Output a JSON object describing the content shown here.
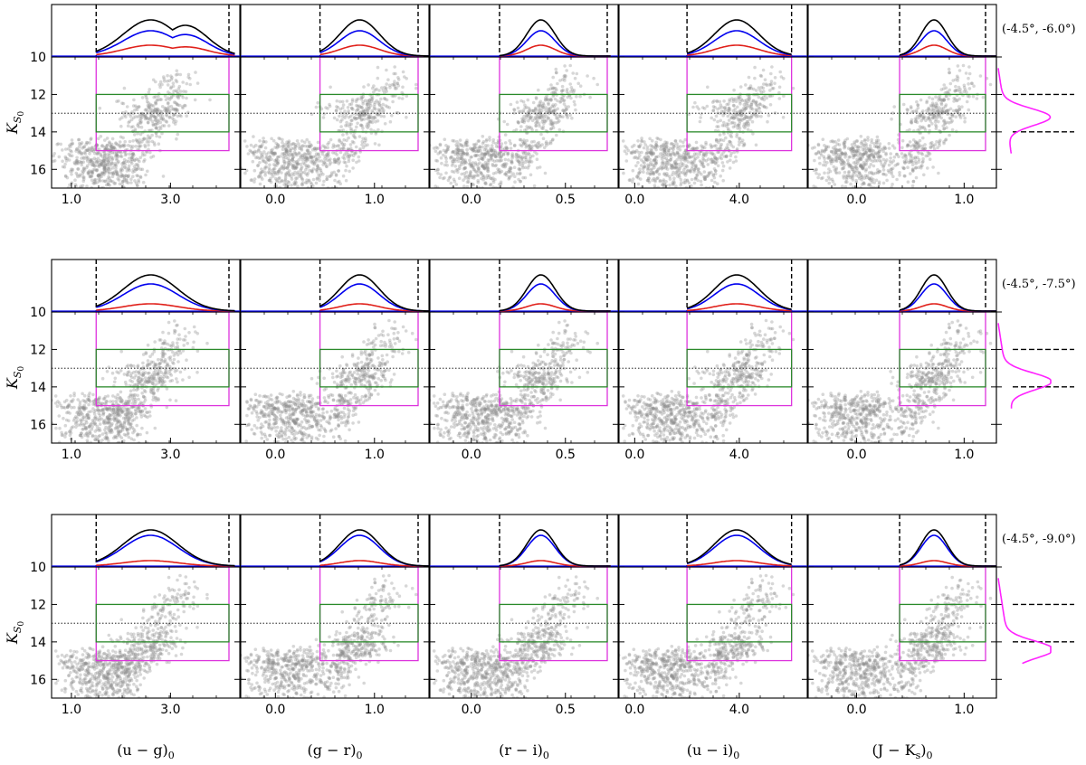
{
  "chart_data": {
    "type": "scatter",
    "description_rows": 3,
    "ylabel": "K_S0",
    "ylabel_main": "K",
    "ylabel_sub": "S",
    "ylabel_sub2": "0",
    "y_range": [
      17,
      10
    ],
    "y_ticks": [
      "10",
      "12",
      "14",
      "16"
    ],
    "y_tick_values": [
      10,
      12,
      14,
      16
    ],
    "reference_lines": {
      "dotted_y": 13.0,
      "green_box_y": [
        12.0,
        14.0
      ],
      "magenta_box_y": [
        10.0,
        15.0
      ],
      "side_dashed_y": [
        12.0,
        14.0
      ]
    },
    "columns": [
      {
        "xlabel": "(u − g)₀",
        "xlabel_main": "(u − g)",
        "xlabel_sub": "0",
        "xlim": [
          0.6,
          4.4
        ],
        "ticks": [
          {
            "v": 1.0,
            "label": "1.0"
          },
          {
            "v": 3.0,
            "label": "3.0"
          }
        ],
        "dash_x": [
          1.5,
          4.3
        ],
        "green_box_x": [
          1.5,
          4.3
        ],
        "kde_center": 2.6,
        "kde_width": 0.55
      },
      {
        "xlabel": "(g − r)₀",
        "xlabel_main": "(g − r)",
        "xlabel_sub": "0",
        "xlim": [
          -0.35,
          1.55
        ],
        "ticks": [
          {
            "v": 0.0,
            "label": "0.0"
          },
          {
            "v": 1.0,
            "label": "1.0"
          }
        ],
        "dash_x": [
          0.45,
          1.55
        ],
        "green_box_x": [
          0.45,
          1.55
        ],
        "kde_center": 0.85,
        "kde_width": 0.2
      },
      {
        "xlabel": "(r − i)₀",
        "xlabel_main": "(r − i)",
        "xlabel_sub": "0",
        "xlim": [
          -0.22,
          0.78
        ],
        "ticks": [
          {
            "v": 0.0,
            "label": "0.0"
          },
          {
            "v": 0.5,
            "label": "0.5"
          }
        ],
        "dash_x": [
          0.15,
          0.74
        ],
        "green_box_x": [
          0.15,
          0.74
        ],
        "kde_center": 0.37,
        "kde_width": 0.075
      },
      {
        "xlabel": "(u − i)₀",
        "xlabel_main": "(u − i)",
        "xlabel_sub": "0",
        "xlim": [
          -0.6,
          6.6
        ],
        "ticks": [
          {
            "v": 0.0,
            "label": "0.0"
          },
          {
            "v": 4.0,
            "label": "4.0"
          }
        ],
        "dash_x": [
          2.0,
          6.0
        ],
        "green_box_x": [
          2.0,
          6.0
        ],
        "kde_center": 3.9,
        "kde_width": 0.85
      },
      {
        "xlabel": "(J − K_s)₀",
        "xlabel_main": "(J − K",
        "xlabel_sub_s": "s",
        "xlabel_close": ")",
        "xlabel_sub": "0",
        "xlim": [
          -0.45,
          1.3
        ],
        "ticks": [
          {
            "v": 0.0,
            "label": "0.0"
          },
          {
            "v": 1.0,
            "label": "1.0"
          }
        ],
        "dash_x": [
          0.4,
          1.3
        ],
        "green_box_x": [
          0.4,
          1.3
        ],
        "kde_center": 0.72,
        "kde_width": 0.12
      }
    ],
    "rows": [
      {
        "field": "(-4.5°, -6.0°)",
        "kde_scale": {
          "black": 1.0,
          "blue": 0.7,
          "red": 0.3
        },
        "side_profile_peak": 13.2
      },
      {
        "field": "(-4.5°, -7.5°)",
        "kde_scale": {
          "black": 1.0,
          "blue": 0.75,
          "red": 0.2
        },
        "side_profile_peak": 13.7
      },
      {
        "field": "(-4.5°, -9.0°)",
        "kde_scale": {
          "black": 1.0,
          "blue": 0.85,
          "red": 0.15
        },
        "side_profile_peak": 14.4
      }
    ],
    "legend_colors": {
      "black": "#000000",
      "blue": "#0000ee",
      "red": "#e0201a",
      "green": "#2a8a2a",
      "magenta": "#dd33dd",
      "side_profile": "#ff22ff",
      "points": "#8c8c8c"
    }
  }
}
